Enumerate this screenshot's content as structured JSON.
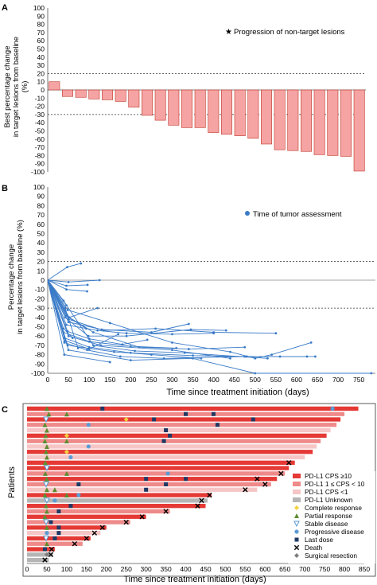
{
  "figure": {
    "colors": {
      "waterfall_bar": "#F5A3A3",
      "waterfall_edge": "#C0392B",
      "spider_line": "#3A7BC8",
      "axis": "#555555"
    }
  },
  "chart_data": [
    {
      "id": "A",
      "type": "bar",
      "panel_label": "A",
      "ylabel": [
        "Best percentage change",
        "in target lesions from baseline",
        "(%)"
      ],
      "ylim": [
        -100,
        100
      ],
      "yticks": [
        100,
        90,
        80,
        70,
        60,
        50,
        40,
        30,
        20,
        10,
        0,
        -10,
        -20,
        -30,
        -40,
        -50,
        -60,
        -70,
        -80,
        -90,
        -100
      ],
      "reference_lines": [
        20,
        -30
      ],
      "legend": "Progression of non-target lesions",
      "legend_position": "top-right",
      "values": [
        10,
        -8,
        -9,
        -11,
        -12,
        -14,
        -21,
        -31,
        -37,
        -43,
        -46,
        -46,
        -52,
        -54,
        -56,
        -59,
        -66,
        -73,
        -74,
        -75,
        -79,
        -80,
        -81,
        -99
      ],
      "marked_bars": [
        1
      ]
    },
    {
      "id": "B",
      "type": "line",
      "panel_label": "B",
      "ylabel": [
        "Percentage change",
        "in target lesions from baseline (%)"
      ],
      "xlabel": "Time since treatment initiation (days)",
      "ylim": [
        -100,
        100
      ],
      "xlim": [
        0,
        790
      ],
      "yticks": [
        100,
        90,
        80,
        70,
        60,
        50,
        40,
        30,
        20,
        10,
        0,
        -10,
        -20,
        -30,
        -40,
        -50,
        -60,
        -70,
        -80,
        -90,
        -100
      ],
      "xticks": [
        0,
        50,
        100,
        150,
        200,
        250,
        300,
        350,
        400,
        450,
        500,
        550,
        600,
        650,
        700,
        750
      ],
      "reference_lines": [
        20,
        -30
      ],
      "legend": "Time of tumor assessment",
      "legend_position": "top-right",
      "series": [
        {
          "x": [
            0,
            47,
            80
          ],
          "y": [
            0,
            14,
            18
          ]
        },
        {
          "x": [
            0,
            45,
            95
          ],
          "y": [
            0,
            -10,
            -12
          ]
        },
        {
          "x": [
            0,
            50,
            125
          ],
          "y": [
            0,
            -2,
            0
          ]
        },
        {
          "x": [
            0,
            42,
            73
          ],
          "y": [
            0,
            -30,
            -73
          ]
        },
        {
          "x": [
            0,
            38,
            60
          ],
          "y": [
            0,
            -52,
            -62
          ]
        },
        {
          "x": [
            0,
            45
          ],
          "y": [
            0,
            -27
          ]
        },
        {
          "x": [
            0,
            50,
            93
          ],
          "y": [
            0,
            -40,
            -52
          ]
        },
        {
          "x": [
            0,
            48,
            100,
            180,
            240
          ],
          "y": [
            0,
            -55,
            -63,
            -69,
            -64
          ]
        },
        {
          "x": [
            0,
            45,
            120,
            190,
            300,
            400
          ],
          "y": [
            0,
            -48,
            -54,
            -57,
            -58,
            -57
          ]
        },
        {
          "x": [
            0,
            42,
            98,
            190,
            345,
            430
          ],
          "y": [
            0,
            -40,
            -60,
            -60,
            -53,
            -54
          ]
        },
        {
          "x": [
            0,
            50,
            130,
            250,
            340
          ],
          "y": [
            0,
            -45,
            -53,
            -56,
            -47
          ]
        },
        {
          "x": [
            0,
            38,
            100,
            200,
            310
          ],
          "y": [
            0,
            -56,
            -66,
            -71,
            -73
          ]
        },
        {
          "x": [
            0,
            50,
            135,
            260,
            400,
            550
          ],
          "y": [
            0,
            -42,
            -54,
            -52,
            -56,
            -57
          ]
        },
        {
          "x": [
            0,
            40,
            100,
            200,
            350,
            475,
            625
          ],
          "y": [
            0,
            -62,
            -72,
            -78,
            -81,
            -82,
            -82
          ]
        },
        {
          "x": [
            0,
            45,
            110,
            220,
            340,
            475
          ],
          "y": [
            0,
            -38,
            -56,
            -72,
            -74,
            -72
          ]
        },
        {
          "x": [
            0,
            40,
            95,
            175,
            280,
            480,
            560,
            645
          ],
          "y": [
            0,
            -67,
            -75,
            -82,
            -84,
            -82,
            -82,
            -82
          ]
        },
        {
          "x": [
            0,
            50,
            128,
            300,
            440
          ],
          "y": [
            0,
            -60,
            -70,
            -75,
            -84
          ]
        },
        {
          "x": [
            0,
            38,
            110,
            210,
            330,
            530
          ],
          "y": [
            0,
            -22,
            -70,
            -76,
            -78,
            -84
          ]
        },
        {
          "x": [
            0,
            48,
            160,
            250,
            370
          ],
          "y": [
            0,
            -70,
            -77,
            -80,
            -84
          ]
        },
        {
          "x": [
            0,
            40,
            150
          ],
          "y": [
            0,
            -80,
            -88
          ]
        },
        {
          "x": [
            0,
            42,
            100,
            170
          ],
          "y": [
            0,
            -65,
            -74,
            -58
          ]
        },
        {
          "x": [
            0,
            52,
            120
          ],
          "y": [
            0,
            -40,
            -30
          ]
        },
        {
          "x": [
            0,
            45,
            96
          ],
          "y": [
            0,
            -6,
            -5
          ]
        },
        {
          "x": [
            0,
            48,
            150,
            300,
            440,
            500,
            540,
            635
          ],
          "y": [
            0,
            -32,
            -46,
            -67,
            -77,
            -84,
            -80,
            -67
          ]
        },
        {
          "x": [
            0,
            50,
            200,
            350,
            500,
            780
          ],
          "y": [
            0,
            -75,
            -86,
            -84,
            -100,
            -100
          ]
        }
      ]
    },
    {
      "id": "C",
      "type": "bar",
      "orientation": "horizontal",
      "panel_label": "C",
      "ylabel": "Patients",
      "xlabel": "Time since treatment initiation (days)",
      "xlim": [
        0,
        850
      ],
      "xticks": [
        0,
        50,
        100,
        150,
        200,
        250,
        300,
        350,
        400,
        450,
        500,
        550,
        600,
        650,
        700,
        750,
        800,
        850
      ],
      "legend_position": "right",
      "legend_items": [
        {
          "key": "cps10",
          "label": "PD-L1   CPS ≥10",
          "kind": "rect",
          "color": "#E53935"
        },
        {
          "key": "cps1",
          "label": "PD-L1   1 ≤ CPS < 10",
          "kind": "rect",
          "color": "#EF8A8A"
        },
        {
          "key": "cpsl1",
          "label": "PD-L1   CPS <1",
          "kind": "rect",
          "color": "#F6C6C6"
        },
        {
          "key": "unknown",
          "label": "PD-L1   Unknown",
          "kind": "rect",
          "color": "#B5B5B5"
        },
        {
          "key": "CR",
          "label": "Complete response",
          "kind": "diamond",
          "color": "#F4D03F"
        },
        {
          "key": "PR",
          "label": "Partial response",
          "kind": "triangle",
          "color": "#5E8C31"
        },
        {
          "key": "SD",
          "label": "Stable disease",
          "kind": "triangle-down",
          "color": "#5B9BD5"
        },
        {
          "key": "PD",
          "label": "Progressive disease",
          "kind": "circle",
          "color": "#5B9BD5"
        },
        {
          "key": "LD",
          "label": "Last dose",
          "kind": "square",
          "color": "#1F3864"
        },
        {
          "key": "DE",
          "label": "Death",
          "kind": "cross",
          "color": "#000000"
        },
        {
          "key": "SR",
          "label": "Surgical resection",
          "kind": "diamond",
          "color": "#7F7F7F"
        }
      ],
      "patients": [
        {
          "end": 835,
          "cat": "cps10",
          "events": [
            {
              "t": 50,
              "k": "PR"
            },
            {
              "t": 190,
              "k": "LD"
            },
            {
              "t": 770,
              "k": "PD"
            }
          ]
        },
        {
          "end": 800,
          "cat": "cps1",
          "events": [
            {
              "t": 55,
              "k": "PR"
            },
            {
              "t": 100,
              "k": "PR"
            },
            {
              "t": 400,
              "k": "LD"
            },
            {
              "t": 470,
              "k": "LD"
            }
          ]
        },
        {
          "end": 790,
          "cat": "cps10",
          "events": [
            {
              "t": 48,
              "k": "SD"
            },
            {
              "t": 250,
              "k": "CR"
            },
            {
              "t": 320,
              "k": "LD"
            },
            {
              "t": 570,
              "k": "LD"
            }
          ]
        },
        {
          "end": 780,
          "cat": "cps1",
          "events": [
            {
              "t": 45,
              "k": "PR"
            },
            {
              "t": 155,
              "k": "PD"
            },
            {
              "t": 480,
              "k": "LD"
            }
          ]
        },
        {
          "end": 765,
          "cat": "cpsl1",
          "events": [
            {
              "t": 50,
              "k": "PR"
            },
            {
              "t": 350,
              "k": "LD"
            }
          ]
        },
        {
          "end": 755,
          "cat": "cps10",
          "events": [
            {
              "t": 47,
              "k": "PR"
            },
            {
              "t": 100,
              "k": "CR"
            },
            {
              "t": 360,
              "k": "LD"
            }
          ]
        },
        {
          "end": 740,
          "cat": "cps1",
          "events": [
            {
              "t": 45,
              "k": "PR"
            },
            {
              "t": 100,
              "k": "PR"
            },
            {
              "t": 345,
              "k": "LD"
            }
          ]
        },
        {
          "end": 730,
          "cat": "cpsl1",
          "events": [
            {
              "t": 50,
              "k": "PR"
            },
            {
              "t": 155,
              "k": "PD"
            }
          ]
        },
        {
          "end": 720,
          "cat": "cps10",
          "events": [
            {
              "t": 48,
              "k": "PR"
            },
            {
              "t": 100,
              "k": "CR"
            }
          ]
        },
        {
          "end": 700,
          "cat": "cpsl1",
          "events": [
            {
              "t": 50,
              "k": "PR"
            },
            {
              "t": 110,
              "k": "PD"
            }
          ]
        },
        {
          "end": 675,
          "cat": "cps10",
          "events": [
            {
              "t": 46,
              "k": "PR"
            },
            {
              "t": 660,
              "k": "DE"
            }
          ]
        },
        {
          "end": 660,
          "cat": "cps10",
          "events": [
            {
              "t": 50,
              "k": "SD"
            }
          ]
        },
        {
          "end": 650,
          "cat": "cps1",
          "events": [
            {
              "t": 46,
              "k": "PR"
            },
            {
              "t": 100,
              "k": "PR"
            },
            {
              "t": 355,
              "k": "PD"
            },
            {
              "t": 640,
              "k": "DE"
            }
          ]
        },
        {
          "end": 630,
          "cat": "cps10",
          "events": [
            {
              "t": 50,
              "k": "PR"
            },
            {
              "t": 300,
              "k": "LD"
            },
            {
              "t": 400,
              "k": "LD"
            },
            {
              "t": 580,
              "k": "DE"
            }
          ]
        },
        {
          "end": 615,
          "cat": "cps1",
          "events": [
            {
              "t": 48,
              "k": "SD"
            },
            {
              "t": 130,
              "k": "LD"
            },
            {
              "t": 350,
              "k": "LD"
            },
            {
              "t": 600,
              "k": "DE"
            }
          ]
        },
        {
          "end": 580,
          "cat": "cpsl1",
          "events": [
            {
              "t": 50,
              "k": "PR"
            },
            {
              "t": 70,
              "k": "PR"
            },
            {
              "t": 300,
              "k": "LD"
            },
            {
              "t": 550,
              "k": "DE"
            }
          ]
        },
        {
          "end": 465,
          "cat": "cps10",
          "events": [
            {
              "t": 45,
              "k": "PR"
            },
            {
              "t": 100,
              "k": "PR"
            },
            {
              "t": 130,
              "k": "PD"
            },
            {
              "t": 460,
              "k": "DE"
            }
          ]
        },
        {
          "end": 455,
          "cat": "unknown",
          "events": [
            {
              "t": 50,
              "k": "SD"
            },
            {
              "t": 70,
              "k": "PD"
            },
            {
              "t": 440,
              "k": "DE"
            }
          ]
        },
        {
          "end": 450,
          "cat": "cps10",
          "events": [
            {
              "t": 48,
              "k": "PR"
            },
            {
              "t": 110,
              "k": "LD"
            },
            {
              "t": 430,
              "k": "DE"
            }
          ]
        },
        {
          "end": 360,
          "cat": "cps1",
          "events": [
            {
              "t": 50,
              "k": "PR"
            },
            {
              "t": 80,
              "k": "LD"
            },
            {
              "t": 350,
              "k": "DE"
            }
          ]
        },
        {
          "end": 300,
          "cat": "cps10",
          "events": [
            {
              "t": 45,
              "k": "PR"
            },
            {
              "t": 290,
              "k": "DE"
            }
          ]
        },
        {
          "end": 260,
          "cat": "cps1",
          "events": [
            {
              "t": 48,
              "k": "SD"
            },
            {
              "t": 60,
              "k": "LD"
            },
            {
              "t": 250,
              "k": "DE"
            }
          ]
        },
        {
          "end": 200,
          "cat": "cps10",
          "events": [
            {
              "t": 50,
              "k": "PR"
            },
            {
              "t": 80,
              "k": "LD"
            },
            {
              "t": 190,
              "k": "DE"
            }
          ]
        },
        {
          "end": 185,
          "cat": "cpsl1",
          "events": [
            {
              "t": 50,
              "k": "PD"
            },
            {
              "t": 80,
              "k": "LD"
            },
            {
              "t": 170,
              "k": "DE"
            }
          ]
        },
        {
          "end": 160,
          "cat": "cps10",
          "events": [
            {
              "t": 48,
              "k": "SD"
            },
            {
              "t": 70,
              "k": "LD"
            },
            {
              "t": 150,
              "k": "DE"
            }
          ]
        },
        {
          "end": 140,
          "cat": "cps1",
          "events": [
            {
              "t": 50,
              "k": "PR"
            },
            {
              "t": 120,
              "k": "DE"
            }
          ]
        },
        {
          "end": 70,
          "cat": "cps10",
          "events": [
            {
              "t": 45,
              "k": "LD"
            },
            {
              "t": 62,
              "k": "DE"
            }
          ]
        },
        {
          "end": 65,
          "cat": "unknown",
          "events": [
            {
              "t": 50,
              "k": "SR"
            },
            {
              "t": 60,
              "k": "DE"
            }
          ]
        },
        {
          "end": 55,
          "cat": "unknown",
          "events": [
            {
              "t": 45,
              "k": "DE"
            }
          ]
        }
      ]
    }
  ]
}
